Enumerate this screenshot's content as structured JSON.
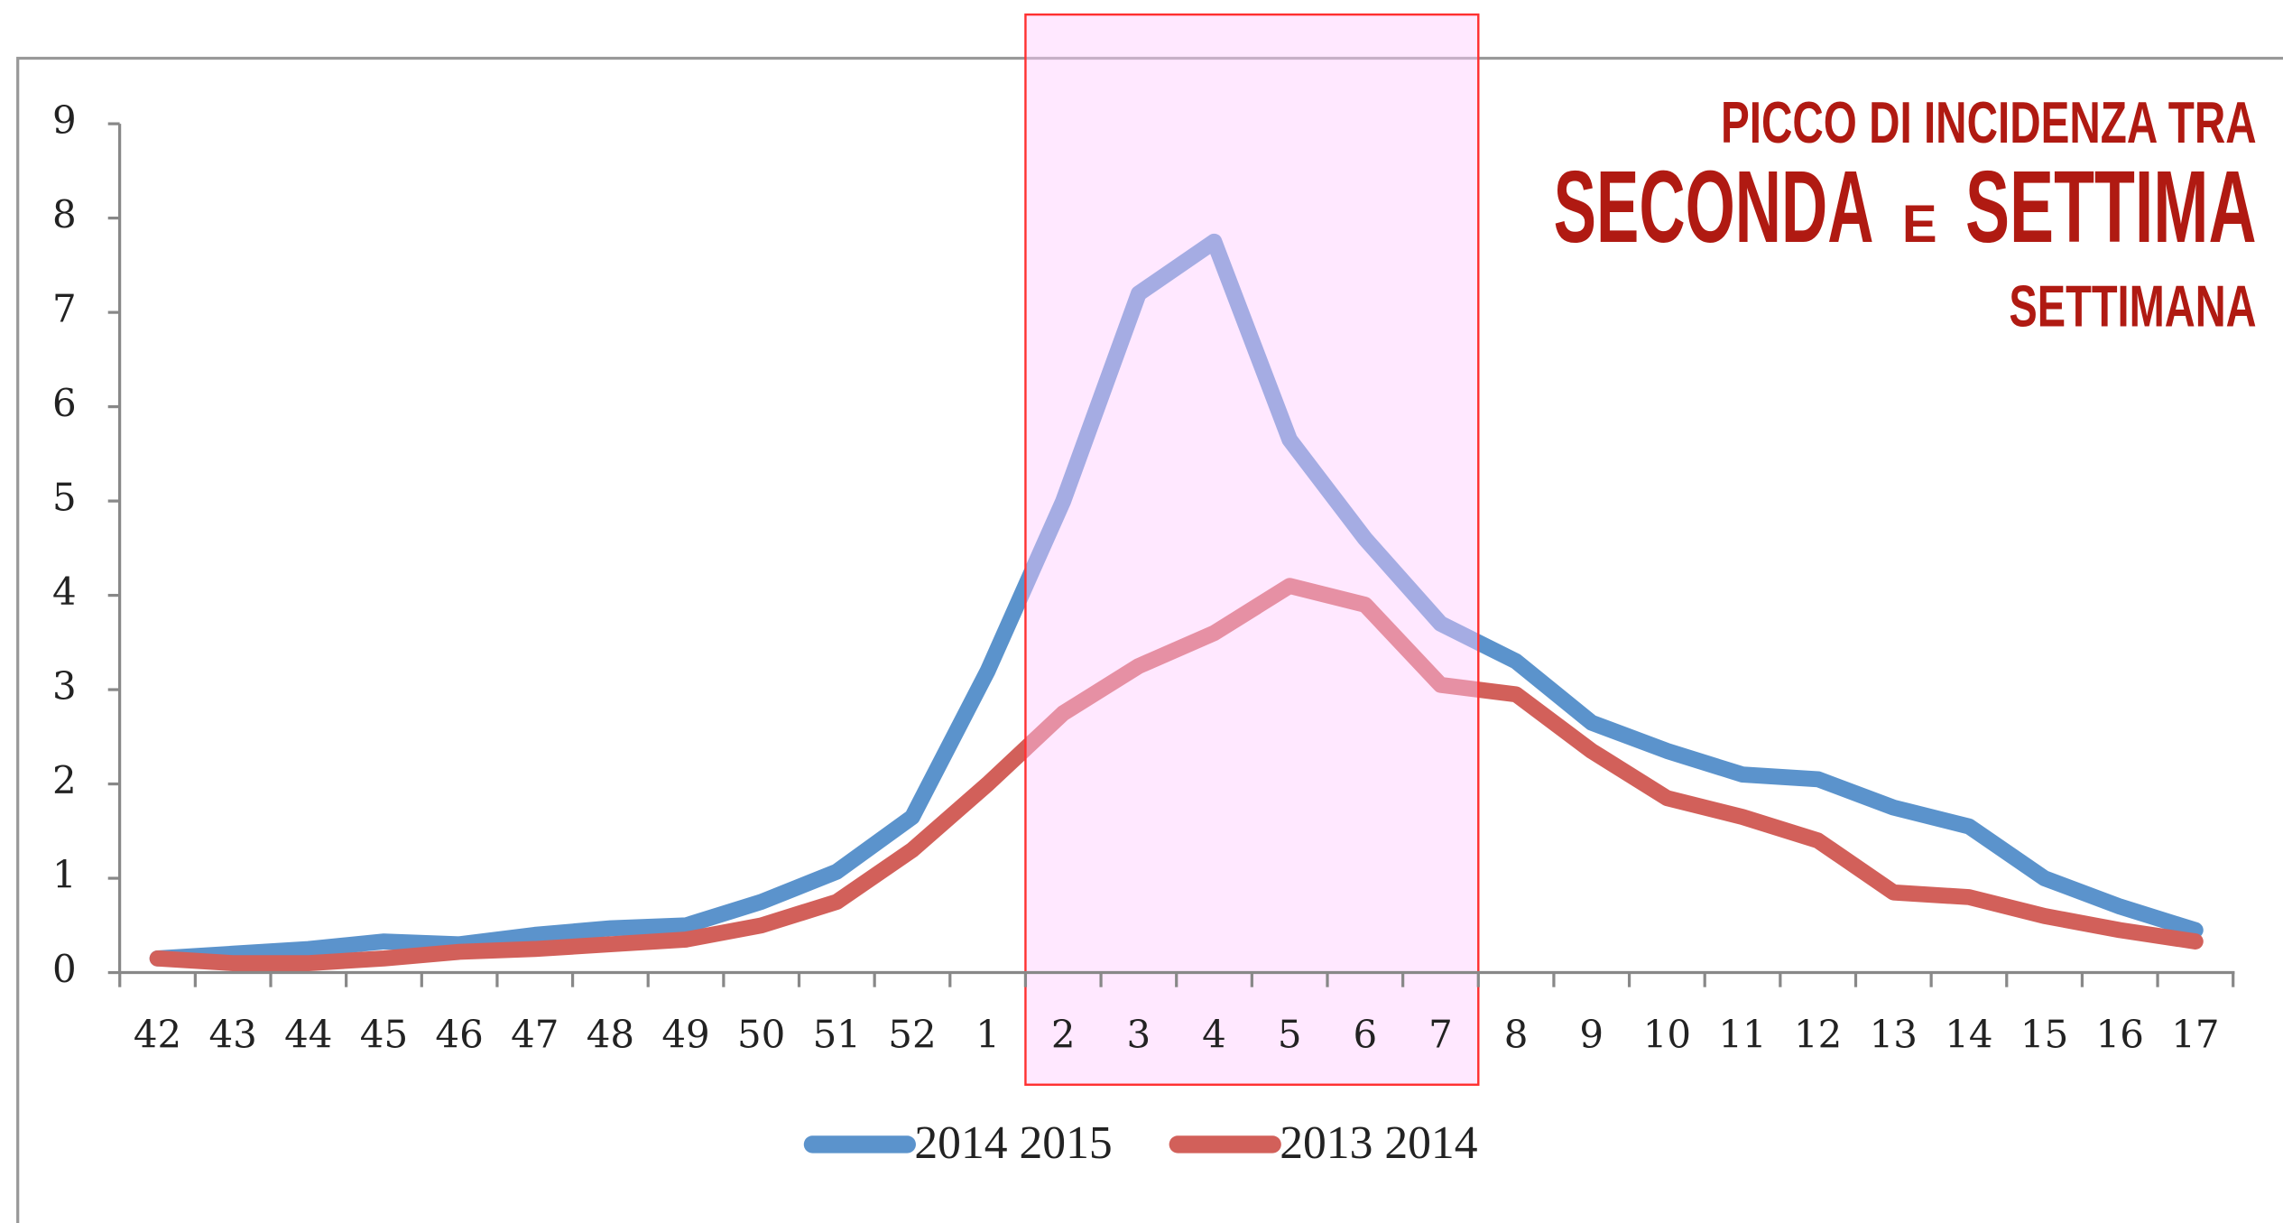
{
  "chart_data": {
    "type": "line",
    "categories": [
      "42",
      "43",
      "44",
      "45",
      "46",
      "47",
      "48",
      "49",
      "50",
      "51",
      "52",
      "1",
      "2",
      "3",
      "4",
      "5",
      "6",
      "7",
      "8",
      "9",
      "10",
      "11",
      "12",
      "13",
      "14",
      "15",
      "16",
      "17"
    ],
    "series": [
      {
        "name": "2014 2015",
        "color": "#5b93cc",
        "values": [
          0.15,
          0.2,
          0.25,
          0.33,
          0.3,
          0.4,
          0.47,
          0.5,
          0.75,
          1.07,
          1.65,
          3.2,
          5.0,
          7.2,
          7.75,
          5.65,
          4.6,
          3.7,
          3.3,
          2.65,
          2.35,
          2.1,
          2.05,
          1.75,
          1.55,
          1.0,
          0.7,
          0.45
        ]
      },
      {
        "name": "2013 2014",
        "color": "#d2605a",
        "values": [
          0.15,
          0.1,
          0.1,
          0.15,
          0.22,
          0.25,
          0.3,
          0.35,
          0.5,
          0.75,
          1.3,
          2.0,
          2.75,
          3.25,
          3.6,
          4.1,
          3.9,
          3.05,
          2.95,
          2.35,
          1.85,
          1.65,
          1.4,
          0.85,
          0.8,
          0.6,
          0.45,
          0.33
        ]
      }
    ],
    "ylim": [
      0,
      9
    ],
    "yticks": [
      0,
      1,
      2,
      3,
      4,
      5,
      6,
      7,
      8,
      9
    ],
    "highlight": {
      "from": "2",
      "to": "7",
      "color": "#ff3030"
    },
    "annotation": {
      "line1": "PICCO DI INCIDENZA TRA",
      "word1": "SECONDA",
      "joiner": "E",
      "word2": "SETTIMA",
      "line3": "SETTIMANA"
    },
    "legend": "bottom"
  }
}
